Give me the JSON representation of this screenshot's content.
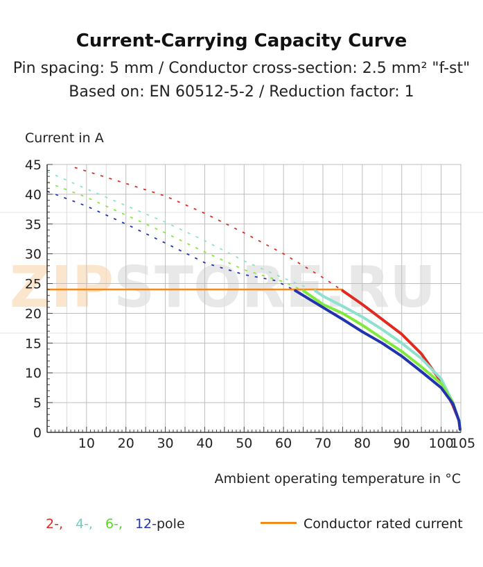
{
  "title": "Current-Carrying Capacity Curve",
  "subtitle_lines": [
    "Pin spacing: 5 mm / Conductor cross-section: 2.5 mm² \"f-st\"",
    "Based on: EN 60512-5-2 / Reduction factor: 1"
  ],
  "watermark": "ZIPSTORE.RU",
  "legend": {
    "series_prefixes": [
      "2-,",
      "4-,",
      "6-,",
      "12-"
    ],
    "series_suffix": "pole",
    "rated_current_label": "Conductor rated current"
  },
  "colors": {
    "pole_2": "#e02a1f",
    "pole_4": "#8ee0d3",
    "pole_6": "#7fea3c",
    "pole_12": "#2233b0",
    "rated_current": "#f08a1c",
    "grid": "#bdbdbd"
  },
  "chart_data": {
    "type": "line",
    "xlabel": "Ambient operating temperature in °C",
    "ylabel": "Current in A",
    "xlim": [
      0,
      105
    ],
    "ylim": [
      0,
      45
    ],
    "xticks": [
      10,
      20,
      30,
      40,
      50,
      60,
      70,
      80,
      90,
      100,
      105
    ],
    "yticks": [
      0,
      5,
      10,
      15,
      20,
      25,
      30,
      35,
      40,
      45
    ],
    "grid": true,
    "series": [
      {
        "name": "2-pole",
        "dashed": {
          "x": [
            7,
            20,
            30,
            40,
            50,
            60,
            70,
            75
          ],
          "y": [
            44.5,
            41.8,
            39.7,
            36.8,
            33.5,
            30.0,
            26.0,
            23.8
          ]
        },
        "solid": {
          "x": [
            75,
            80,
            85,
            90,
            95,
            100,
            103,
            104.5,
            104.8
          ],
          "y": [
            23.8,
            21.5,
            19.0,
            16.5,
            13.2,
            8.5,
            4.5,
            2.0,
            0.5
          ]
        }
      },
      {
        "name": "4-pole",
        "dashed": {
          "x": [
            0,
            10,
            20,
            30,
            40,
            50,
            60,
            68
          ],
          "y": [
            43.8,
            40.9,
            38.1,
            35.3,
            32.2,
            28.8,
            25.9,
            23.8
          ]
        },
        "solid": {
          "x": [
            68,
            70,
            75,
            80,
            85,
            90,
            95,
            100,
            103,
            104.5,
            104.8
          ],
          "y": [
            23.8,
            22.9,
            21.2,
            19.4,
            17.3,
            15.0,
            12.4,
            9.0,
            5.0,
            2.0,
            0.5
          ]
        }
      },
      {
        "name": "6-pole",
        "dashed": {
          "x": [
            0,
            10,
            20,
            30,
            40,
            50,
            60,
            65
          ],
          "y": [
            42.0,
            39.5,
            36.5,
            33.5,
            30.3,
            27.3,
            25.3,
            23.8
          ]
        },
        "solid": {
          "x": [
            65,
            70,
            75,
            80,
            85,
            90,
            95,
            100,
            103,
            104.5,
            104.8
          ],
          "y": [
            23.8,
            21.5,
            20.0,
            18.0,
            15.8,
            13.6,
            11.0,
            8.2,
            5.0,
            2.0,
            0.5
          ]
        }
      },
      {
        "name": "12-pole",
        "dashed": {
          "x": [
            0,
            10,
            20,
            30,
            40,
            50,
            58,
            63
          ],
          "y": [
            40.5,
            38.0,
            35.0,
            31.8,
            28.5,
            26.5,
            25.5,
            23.8
          ]
        },
        "solid": {
          "x": [
            63,
            70,
            75,
            80,
            85,
            90,
            95,
            100,
            103,
            104.5,
            104.8
          ],
          "y": [
            23.8,
            21.0,
            19.0,
            16.9,
            15.0,
            12.8,
            10.2,
            7.5,
            4.8,
            2.0,
            0.5
          ]
        }
      }
    ],
    "reference_lines": [
      {
        "name": "Conductor rated current",
        "y": 24,
        "x_from": 0,
        "x_to": 75
      }
    ]
  }
}
